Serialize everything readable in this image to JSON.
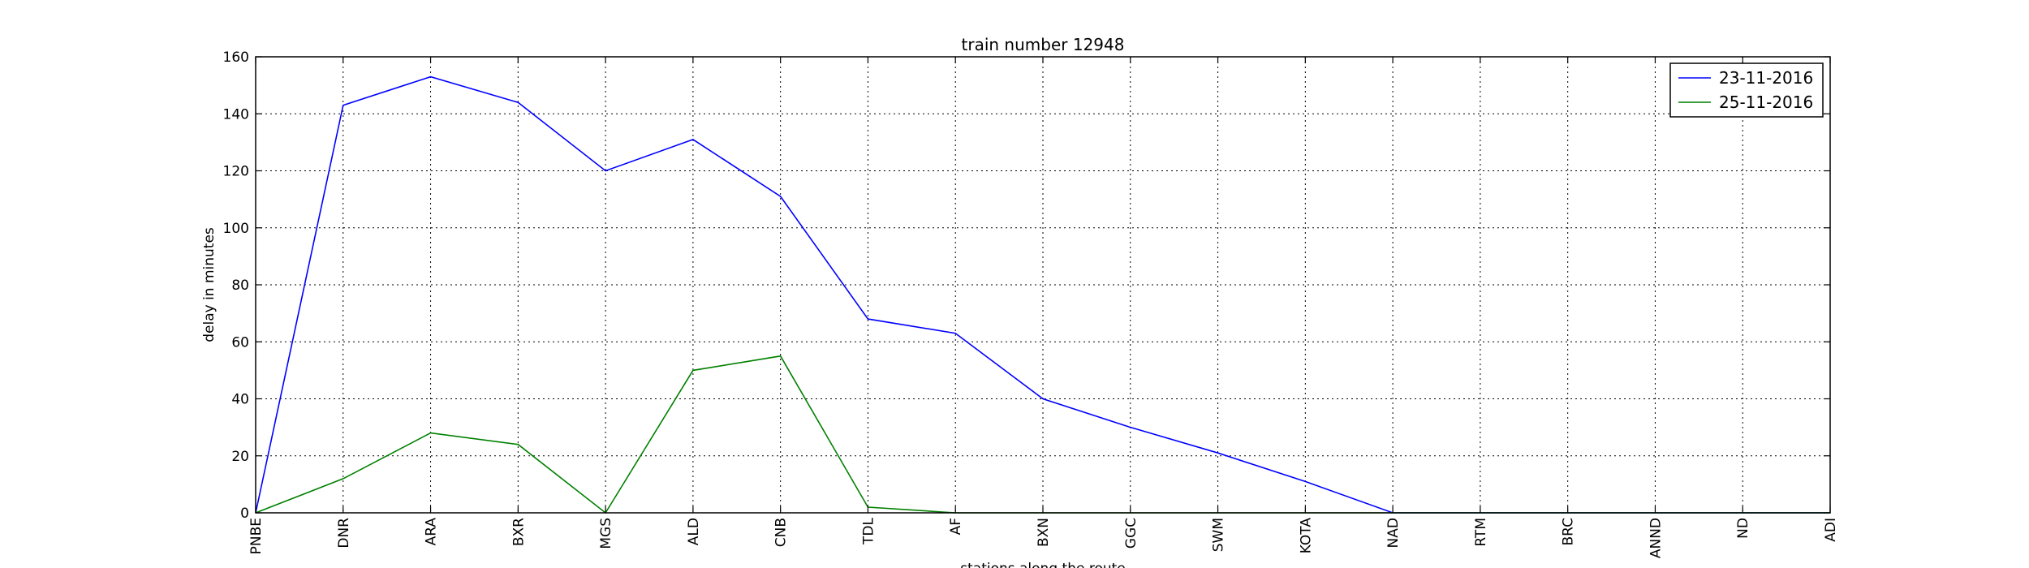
{
  "chart_data": {
    "type": "line",
    "title": "train number 12948",
    "xlabel": "stations along the route",
    "ylabel": "delay in minutes",
    "categories": [
      "PNBE",
      "DNR",
      "ARA",
      "BXR",
      "MGS",
      "ALD",
      "CNB",
      "TDL",
      "AF",
      "BXN",
      "GGC",
      "SWM",
      "KOTA",
      "NAD",
      "RTM",
      "BRC",
      "ANND",
      "ND",
      "ADI"
    ],
    "ylim": [
      0,
      160
    ],
    "yticks": [
      0,
      20,
      40,
      60,
      80,
      100,
      120,
      140,
      160
    ],
    "grid": true,
    "legend_position": "top-right",
    "series": [
      {
        "name": "23-11-2016",
        "color": "#0000ff",
        "values": [
          0,
          143,
          153,
          144,
          120,
          131,
          111,
          68,
          63,
          40,
          30,
          21,
          11,
          0,
          0,
          0,
          0,
          0,
          0
        ]
      },
      {
        "name": "25-11-2016",
        "color": "#008000",
        "values": [
          0,
          12,
          28,
          24,
          0,
          50,
          55,
          2,
          0,
          0,
          0,
          0,
          0,
          0,
          0,
          0,
          0,
          0,
          0
        ]
      }
    ]
  }
}
